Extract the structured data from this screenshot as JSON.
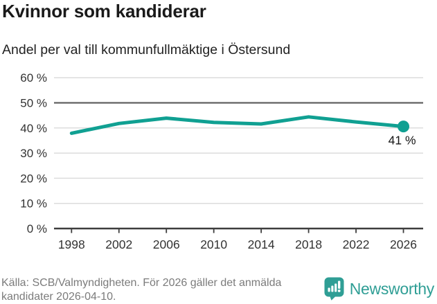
{
  "header": {
    "title": "Kvinnor som kandiderar",
    "subtitle": "Andel per val till kommunfullmäktige i Östersund"
  },
  "chart_data": {
    "type": "line",
    "title": "Kvinnor som kandiderar",
    "subtitle": "Andel per val till kommunfullmäktige i Östersund",
    "categories": [
      1998,
      2002,
      2006,
      2010,
      2014,
      2018,
      2022,
      2026
    ],
    "values": [
      37.9,
      41.8,
      43.9,
      42.2,
      41.6,
      44.4,
      42.4,
      40.6
    ],
    "unit": "%",
    "ylim": [
      0,
      60
    ],
    "yticks": [
      0,
      10,
      20,
      30,
      40,
      50,
      60
    ],
    "ytick_suffix": " %",
    "reference_line": 50,
    "grid": true,
    "legend": "none",
    "end_point_label": "41 %",
    "end_point_marker": true
  },
  "footer": {
    "source": "Källa: SCB/Valmyndigheten. För 2026 gäller det anmälda kandidater 2026-04-10.",
    "logo_text": "Newsworthy"
  },
  "icons": {
    "logo_icon": "newsworthy-bar-chart-bubble-icon"
  },
  "colors": {
    "line": "#10a092",
    "marker": "#10a092",
    "grid": "#dcdcdc",
    "reference": "#616161",
    "axis": "#3d3d3d",
    "tick_label": "#333333",
    "end_label": "#161616",
    "title": "#1a1a1a",
    "subtitle": "#222222",
    "source_text": "#7b7b7b",
    "logo": "#2f9e95"
  }
}
